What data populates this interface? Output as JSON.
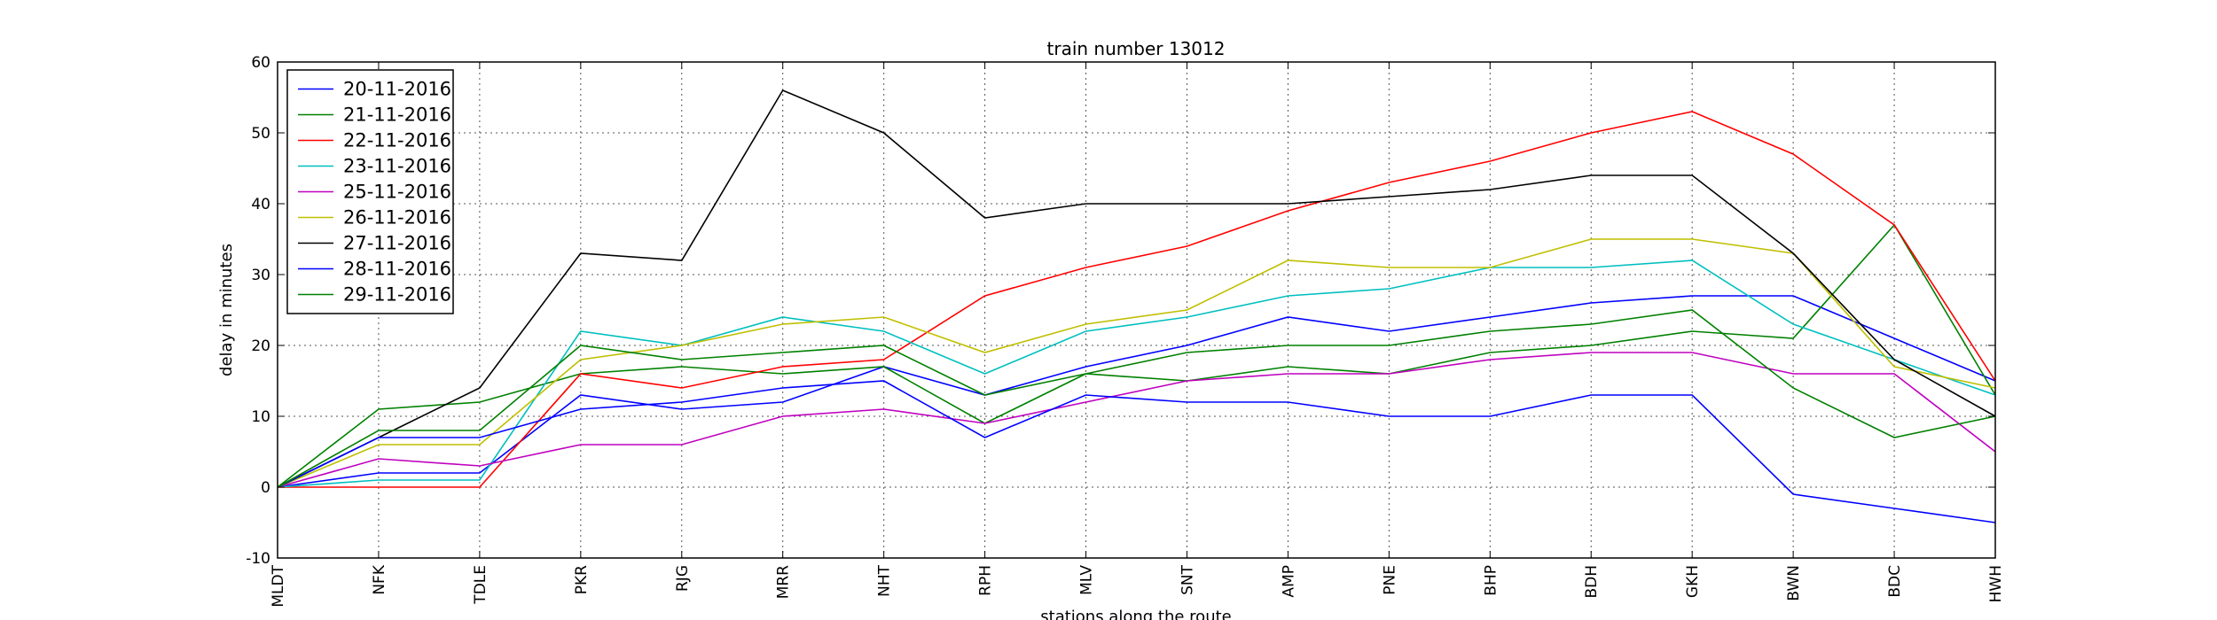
{
  "chart_data": {
    "type": "line",
    "title": "train number 13012",
    "xlabel": "stations along the route",
    "ylabel": "delay in minutes",
    "categories": [
      "MLDT",
      "NFK",
      "TDLE",
      "PKR",
      "RJG",
      "MRR",
      "NHT",
      "RPH",
      "MLV",
      "SNT",
      "AMP",
      "PNE",
      "BHP",
      "BDH",
      "GKH",
      "BWN",
      "BDC",
      "HWH"
    ],
    "ylim": [
      -10,
      60
    ],
    "yticks": [
      -10,
      0,
      10,
      20,
      30,
      40,
      50,
      60
    ],
    "grid": true,
    "legend_position": "top-left",
    "series": [
      {
        "name": "20-11-2016",
        "color": "#0000ff",
        "values": [
          0,
          2,
          2,
          13,
          11,
          12,
          17,
          13,
          17,
          20,
          24,
          22,
          24,
          26,
          27,
          27,
          21,
          15
        ]
      },
      {
        "name": "21-11-2016",
        "color": "#008000",
        "values": [
          0,
          11,
          12,
          16,
          17,
          16,
          17,
          9,
          16,
          15,
          17,
          16,
          19,
          20,
          22,
          21,
          37,
          13
        ]
      },
      {
        "name": "22-11-2016",
        "color": "#ff0000",
        "values": [
          0,
          0,
          0,
          16,
          14,
          17,
          18,
          27,
          31,
          34,
          39,
          43,
          46,
          50,
          53,
          47,
          37,
          15
        ]
      },
      {
        "name": "23-11-2016",
        "color": "#00bfbf",
        "values": [
          0,
          1,
          1,
          22,
          20,
          24,
          22,
          16,
          22,
          24,
          27,
          28,
          31,
          31,
          32,
          23,
          18,
          13
        ]
      },
      {
        "name": "25-11-2016",
        "color": "#bf00bf",
        "values": [
          0,
          4,
          3,
          6,
          6,
          10,
          11,
          9,
          12,
          15,
          16,
          16,
          18,
          19,
          19,
          16,
          16,
          5
        ]
      },
      {
        "name": "26-11-2016",
        "color": "#bfbf00",
        "values": [
          0,
          6,
          6,
          18,
          20,
          23,
          24,
          19,
          23,
          25,
          32,
          31,
          31,
          35,
          35,
          33,
          17,
          14
        ]
      },
      {
        "name": "27-11-2016",
        "color": "#000000",
        "values": [
          0,
          7,
          14,
          33,
          32,
          56,
          50,
          38,
          40,
          40,
          40,
          41,
          42,
          44,
          44,
          33,
          18,
          10
        ]
      },
      {
        "name": "28-11-2016",
        "color": "#0000ff",
        "values": [
          0,
          7,
          7,
          11,
          12,
          14,
          15,
          7,
          13,
          12,
          12,
          10,
          10,
          13,
          13,
          -1,
          -3,
          -5
        ]
      },
      {
        "name": "29-11-2016",
        "color": "#008000",
        "values": [
          0,
          8,
          8,
          20,
          18,
          19,
          20,
          13,
          16,
          19,
          20,
          20,
          22,
          23,
          25,
          14,
          7,
          10
        ]
      }
    ]
  }
}
